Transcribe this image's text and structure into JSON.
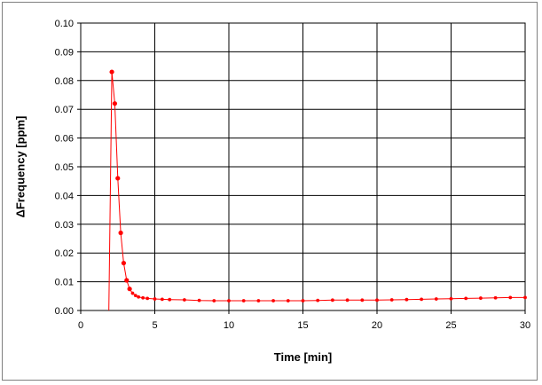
{
  "chart_data": {
    "type": "scatter",
    "title": "",
    "xlabel": "Time [min]",
    "ylabel": "ΔFrequency [ppm]",
    "xlim": [
      0,
      30
    ],
    "ylim": [
      0,
      0.1
    ],
    "xticks": [
      "0",
      "5",
      "10",
      "15",
      "20",
      "25",
      "30"
    ],
    "yticks": [
      "0.00",
      "0.01",
      "0.02",
      "0.03",
      "0.04",
      "0.05",
      "0.06",
      "0.07",
      "0.08",
      "0.09",
      "0.10"
    ],
    "grid": true,
    "legend": "none",
    "series": [
      {
        "color": "#ff0000",
        "marker": "circle",
        "line": true,
        "x": [
          1.9,
          2.1,
          2.3,
          2.5,
          2.7,
          2.9,
          3.1,
          3.3,
          3.5,
          3.7,
          3.9,
          4.2,
          4.5,
          5.0,
          5.5,
          6.0,
          7.0,
          8.0,
          9.0,
          10.0,
          11.0,
          12.0,
          13.0,
          14.0,
          15.0,
          16.0,
          17.0,
          18.0,
          19.0,
          20.0,
          21.0,
          22.0,
          23.0,
          24.0,
          25.0,
          26.0,
          27.0,
          28.0,
          29.0,
          30.0
        ],
        "y": [
          0.0,
          0.083,
          0.072,
          0.046,
          0.027,
          0.0165,
          0.0105,
          0.0075,
          0.006,
          0.0052,
          0.0047,
          0.0044,
          0.0042,
          0.004,
          0.0039,
          0.0038,
          0.0037,
          0.0035,
          0.0034,
          0.0034,
          0.0034,
          0.0034,
          0.0034,
          0.0034,
          0.0034,
          0.0035,
          0.0036,
          0.0036,
          0.0036,
          0.0036,
          0.0037,
          0.0038,
          0.0039,
          0.004,
          0.0041,
          0.0042,
          0.0043,
          0.0044,
          0.0045,
          0.0045
        ]
      }
    ]
  }
}
